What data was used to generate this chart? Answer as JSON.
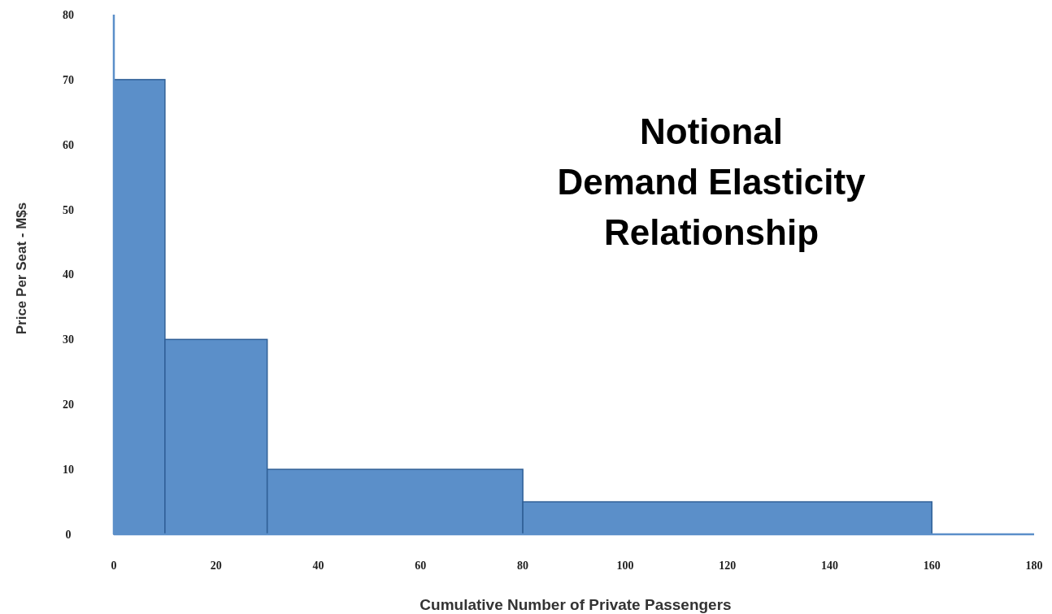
{
  "chart_data": {
    "type": "histogram",
    "title": "Notional\nDemand Elasticity\nRelationship",
    "xlabel": "Cumulative Number of Private Passengers",
    "ylabel": "Price Per Seat - M$s",
    "bins": [
      0,
      10,
      30,
      80,
      160
    ],
    "values": [
      70,
      30,
      10,
      5
    ],
    "color": "#5b8fc9",
    "xlim": [
      0,
      180
    ],
    "xticks": [
      0,
      20,
      40,
      60,
      80,
      100,
      120,
      140,
      160,
      180
    ],
    "ylim": [
      0,
      80
    ],
    "yticks": [
      0,
      10,
      20,
      30,
      40,
      50,
      60,
      70,
      80
    ],
    "grid": false
  }
}
